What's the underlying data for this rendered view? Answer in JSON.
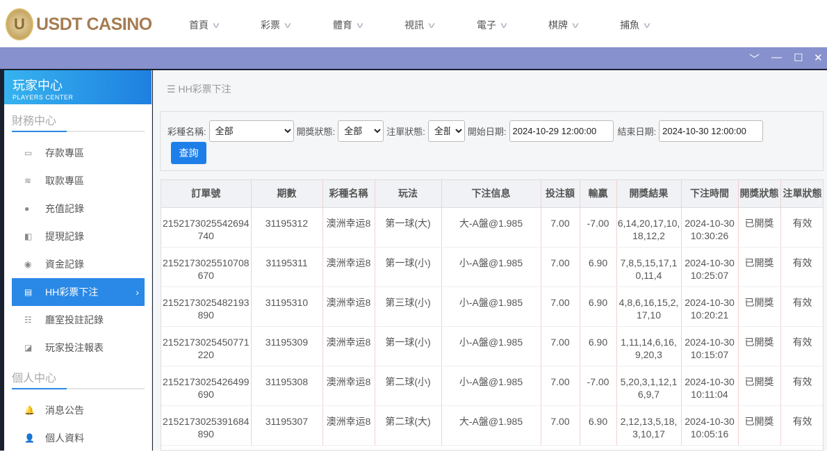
{
  "brand": {
    "name": "USDT CASINO",
    "mark": "U"
  },
  "nav": [
    "首頁",
    "彩票",
    "體育",
    "視訊",
    "電子",
    "棋牌",
    "捕魚"
  ],
  "window_controls": {
    "collapse": "﹀",
    "minimize": "—",
    "maximize": "☐",
    "close": "✕"
  },
  "sidebar": {
    "title": "玩家中心",
    "subtitle": "PLAYERS CENTER",
    "sections": [
      {
        "label": "財務中心",
        "items": [
          {
            "label": "存款專區",
            "icon": "card-icon"
          },
          {
            "label": "取款專區",
            "icon": "hand-money-icon"
          },
          {
            "label": "充值記錄",
            "icon": "money-bag-icon"
          },
          {
            "label": "提現記錄",
            "icon": "wallet-icon"
          },
          {
            "label": "資金記錄",
            "icon": "piggy-bank-icon"
          },
          {
            "label": "HH彩票下注",
            "icon": "list-icon",
            "active": true
          },
          {
            "label": "廳室投註記錄",
            "icon": "menu-list-icon"
          },
          {
            "label": "玩家投注報表",
            "icon": "chart-icon"
          }
        ]
      },
      {
        "label": "個人中心",
        "items": [
          {
            "label": "消息公告",
            "icon": "bell-icon"
          },
          {
            "label": "個人資料",
            "icon": "user-icon"
          }
        ]
      }
    ]
  },
  "breadcrumb": "HH彩票下注",
  "filters": {
    "lottery_label": "彩種名稱:",
    "lottery_value": "全部",
    "draw_label": "開獎狀態:",
    "draw_value": "全部",
    "order_label": "注單狀態:",
    "order_value": "全部",
    "start_label": "開始日期:",
    "start_value": "2024-10-29 12:00:00",
    "end_label": "結束日期:",
    "end_value": "2024-10-30 12:00:00",
    "query_label": "查詢"
  },
  "table": {
    "headers": [
      "訂單號",
      "期數",
      "彩種名稱",
      "玩法",
      "下注信息",
      "投注額",
      "輸贏",
      "開獎結果",
      "下注時間",
      "開獎狀態",
      "注單狀態"
    ],
    "rows": [
      [
        "2152173025542694740",
        "31195312",
        "澳洲幸运8",
        "第一球(大)",
        "大-A盤@1.985",
        "7.00",
        "-7.00",
        "6,14,20,17,10,18,12,2",
        "2024-10-30 10:30:26",
        "已開獎",
        "有效"
      ],
      [
        "2152173025510708670",
        "31195311",
        "澳洲幸运8",
        "第一球(小)",
        "小-A盤@1.985",
        "7.00",
        "6.90",
        "7,8,5,15,17,10,11,4",
        "2024-10-30 10:25:07",
        "已開獎",
        "有效"
      ],
      [
        "2152173025482193890",
        "31195310",
        "澳洲幸运8",
        "第三球(小)",
        "小-A盤@1.985",
        "7.00",
        "6.90",
        "4,8,6,16,15,2,17,10",
        "2024-10-30 10:20:21",
        "已開獎",
        "有效"
      ],
      [
        "2152173025450771220",
        "31195309",
        "澳洲幸运8",
        "第一球(小)",
        "小-A盤@1.985",
        "7.00",
        "6.90",
        "1,11,14,6,16,9,20,3",
        "2024-10-30 10:15:07",
        "已開獎",
        "有效"
      ],
      [
        "2152173025426499690",
        "31195308",
        "澳洲幸运8",
        "第二球(小)",
        "小-A盤@1.985",
        "7.00",
        "-7.00",
        "5,20,3,1,12,16,9,7",
        "2024-10-30 10:11:04",
        "已開獎",
        "有效"
      ],
      [
        "2152173025391684890",
        "31195307",
        "澳洲幸运8",
        "第二球(大)",
        "大-A盤@1.985",
        "7.00",
        "6.90",
        "2,12,13,5,18,3,10,17",
        "2024-10-30 10:05:16",
        "已開獎",
        "有效"
      ]
    ]
  }
}
